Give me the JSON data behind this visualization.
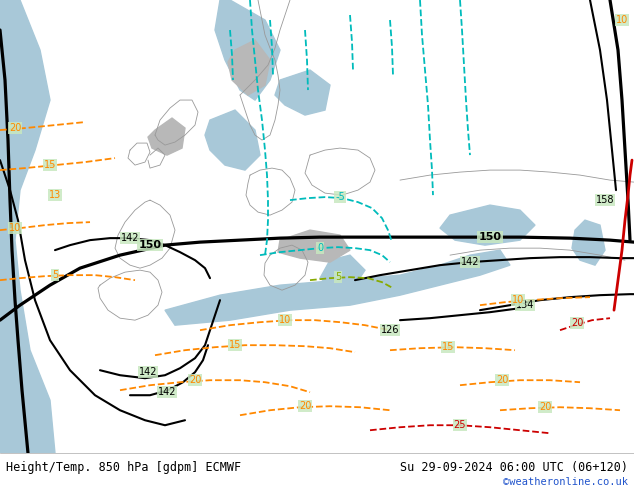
{
  "title_left": "Height/Temp. 850 hPa [gdpm] ECMWF",
  "title_right": "Su 29-09-2024 06:00 UTC (06+120)",
  "copyright": "©weatheronline.co.uk",
  "bg_map_color": "#c8e8c0",
  "sea_color": "#a8c8d8",
  "gray_land_color": "#b8b8b8",
  "border_bar_color": "#e8e8e8",
  "font_size_title": 8.5,
  "font_size_copyright": 7.5,
  "font_color_title": "#000000",
  "font_color_copyright": "#2255cc",
  "black_line_color": "#000000",
  "cyan_line_color": "#00bbbb",
  "orange_line_color": "#ff8800",
  "red_line_color": "#cc0000",
  "yellow_line_color": "#aaaa00",
  "black_lw_thick": 2.3,
  "black_lw_thin": 1.5,
  "color_lw": 1.3,
  "label_fontsize": 7,
  "label_fontsize_large": 8
}
